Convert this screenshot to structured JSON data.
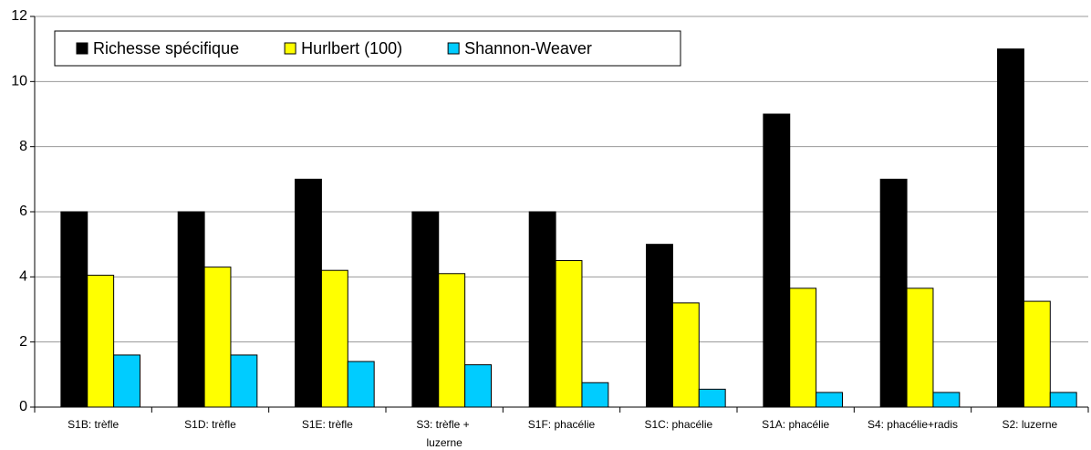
{
  "chart_data": {
    "type": "bar",
    "categories": [
      "S1B: trèfle",
      "S1D: trèfle",
      "S1E: trèfle",
      "S3: trèfle + luzerne",
      "S1F: phacélie",
      "S1C: phacélie",
      "S1A: phacélie",
      "S4: phacélie+radis",
      "S2: luzerne"
    ],
    "series": [
      {
        "name": "Richesse spécifique",
        "color": "#000000",
        "values": [
          6,
          6,
          7,
          6,
          6,
          5,
          9,
          7,
          11
        ]
      },
      {
        "name": "Hurlbert (100)",
        "color": "#ffff00",
        "values": [
          4.05,
          4.3,
          4.2,
          4.1,
          4.5,
          3.2,
          3.65,
          3.65,
          3.25
        ]
      },
      {
        "name": "Shannon-Weaver",
        "color": "#00ccff",
        "values": [
          1.6,
          1.6,
          1.4,
          1.3,
          0.75,
          0.55,
          0.45,
          0.45,
          0.45
        ]
      }
    ],
    "ylim": [
      0,
      12
    ],
    "yticks": [
      0,
      2,
      4,
      6,
      8,
      10,
      12
    ],
    "grid": true,
    "legend": "top-left"
  }
}
